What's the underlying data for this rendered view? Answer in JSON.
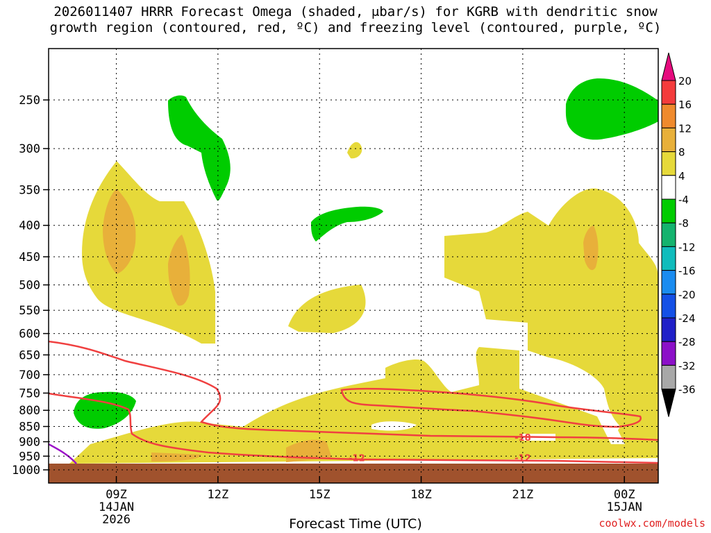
{
  "title_line1": "2026011407 HRRR Forecast Omega (shaded, μbar/s) for KGRB with dendritic snow",
  "title_line2": "growth region (contoured, red, ºC) and freezing level (contoured, purple, ºC)",
  "credit": "coolwx.com/models",
  "chart_data": {
    "type": "contour",
    "title": "2026011407 HRRR Forecast Omega (shaded, μbar/s) for KGRB with dendritic snow growth region (contoured, red, ºC) and freezing level (contoured, purple, ºC)",
    "xlabel": "Forecast Time (UTC)",
    "ylabel": "",
    "x_ticks": [
      {
        "hour": 9,
        "label": "09Z",
        "sub1": "14JAN",
        "sub2": "2026"
      },
      {
        "hour": 12,
        "label": "12Z",
        "sub1": "",
        "sub2": ""
      },
      {
        "hour": 15,
        "label": "15Z",
        "sub1": "",
        "sub2": ""
      },
      {
        "hour": 18,
        "label": "18Z",
        "sub1": "",
        "sub2": ""
      },
      {
        "hour": 21,
        "label": "21Z",
        "sub1": "",
        "sub2": ""
      },
      {
        "hour": 24,
        "label": "00Z",
        "sub1": "15JAN",
        "sub2": ""
      }
    ],
    "xlim_hours": [
      7,
      25
    ],
    "y_ticks": [
      250,
      300,
      350,
      400,
      450,
      500,
      550,
      600,
      650,
      700,
      750,
      800,
      850,
      900,
      950,
      1000
    ],
    "y_log_pressure": true,
    "ylim_hpa": [
      200,
      1030
    ],
    "surface_hpa": 975,
    "grid": true,
    "colorbar": {
      "labels": [
        "20",
        "16",
        "12",
        "8",
        "4",
        "-4",
        "-8",
        "-12",
        "-16",
        "-20",
        "-24",
        "-28",
        "-32",
        "-36"
      ],
      "colors": [
        "#e60b7e",
        "#f43c3c",
        "#ef8a2d",
        "#e8b03a",
        "#e6d93a",
        "#ffffff",
        "#00cc00",
        "#14b36e",
        "#10bcbc",
        "#1a8cf0",
        "#1450e6",
        "#2020c8",
        "#8c10c8",
        "#a8a8a8",
        "#000000"
      ]
    },
    "contour_labels": [
      {
        "text": "-18",
        "hour": 21,
        "hpa": 885
      },
      {
        "text": "-12",
        "hour": 16.1,
        "hpa": 955
      },
      {
        "text": "-12",
        "hour": 21,
        "hpa": 955
      }
    ]
  }
}
